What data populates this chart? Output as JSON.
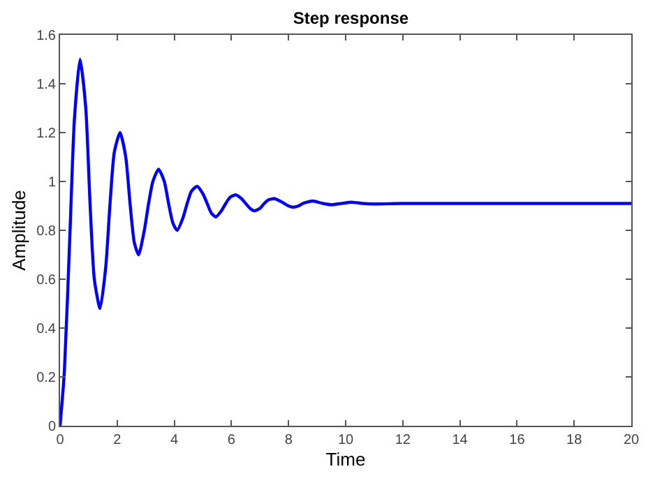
{
  "chart_data": {
    "type": "line",
    "title": "Step response",
    "xlabel": "Time",
    "ylabel": "Amplitude",
    "xlim": [
      0,
      20
    ],
    "xticks": [
      0,
      2,
      4,
      6,
      8,
      10,
      12,
      14,
      16,
      18,
      20
    ],
    "ylim": [
      0,
      1.6
    ],
    "yticks": [
      0,
      0.2,
      0.4,
      0.6,
      0.8,
      1,
      1.2,
      1.4,
      1.6
    ],
    "marker": "none",
    "line_style": "solid",
    "series": [
      {
        "color": "#0000ff",
        "x": [
          0,
          0.15,
          0.35,
          0.5,
          0.7,
          0.9,
          1.05,
          1.2,
          1.4,
          1.6,
          1.75,
          1.9,
          2.1,
          2.3,
          2.45,
          2.6,
          2.75,
          2.95,
          3.1,
          3.25,
          3.45,
          3.65,
          3.8,
          3.95,
          4.1,
          4.3,
          4.45,
          4.6,
          4.8,
          5.0,
          5.15,
          5.3,
          5.45,
          5.65,
          5.8,
          5.95,
          6.15,
          6.35,
          6.5,
          6.65,
          6.8,
          7.0,
          7.15,
          7.3,
          7.5,
          7.7,
          7.85,
          8.0,
          8.15,
          8.35,
          8.5,
          8.85,
          9.2,
          9.5,
          9.85,
          10.2,
          10.6,
          11,
          12,
          20
        ],
        "values": [
          0,
          0.22,
          0.8,
          1.25,
          1.5,
          1.3,
          0.91,
          0.6,
          0.48,
          0.65,
          0.91,
          1.12,
          1.2,
          1.1,
          0.91,
          0.75,
          0.7,
          0.8,
          0.91,
          1.0,
          1.05,
          1.0,
          0.91,
          0.83,
          0.8,
          0.85,
          0.91,
          0.96,
          0.98,
          0.95,
          0.91,
          0.87,
          0.855,
          0.88,
          0.91,
          0.935,
          0.945,
          0.93,
          0.91,
          0.89,
          0.88,
          0.89,
          0.91,
          0.925,
          0.93,
          0.92,
          0.91,
          0.9,
          0.895,
          0.9,
          0.91,
          0.92,
          0.91,
          0.905,
          0.91,
          0.915,
          0.91,
          0.908,
          0.91,
          0.91
        ]
      }
    ]
  }
}
